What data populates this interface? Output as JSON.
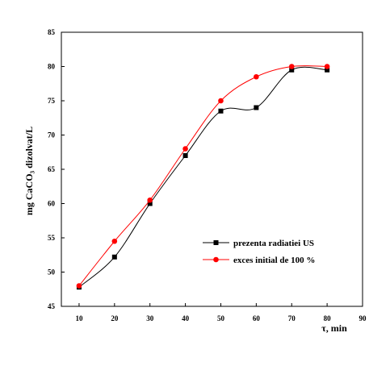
{
  "chart_data": {
    "type": "line",
    "xlabel": "τ, min",
    "ylabel": "mg CaCO₃ dizolvat/L",
    "xlim": [
      5,
      90
    ],
    "ylim": [
      45,
      85
    ],
    "x_ticks": [
      10,
      20,
      30,
      40,
      50,
      60,
      70,
      80,
      90
    ],
    "y_ticks": [
      45,
      50,
      55,
      60,
      65,
      70,
      75,
      80,
      85
    ],
    "legend_position": "lower-right",
    "grid": false,
    "series": [
      {
        "name": "prezenta radiatiei US",
        "color": "#000000",
        "marker": "square",
        "x": [
          10,
          20,
          30,
          40,
          50,
          60,
          70,
          80
        ],
        "y": [
          47.8,
          52.2,
          60.0,
          67.0,
          73.5,
          74.0,
          79.5,
          79.5
        ]
      },
      {
        "name": "exces initial de 100 %",
        "color": "#ff0000",
        "marker": "circle",
        "x": [
          10,
          20,
          30,
          40,
          50,
          60,
          70,
          80
        ],
        "y": [
          48.0,
          54.5,
          60.5,
          68.0,
          75.0,
          78.5,
          80.0,
          80.0
        ]
      }
    ]
  }
}
